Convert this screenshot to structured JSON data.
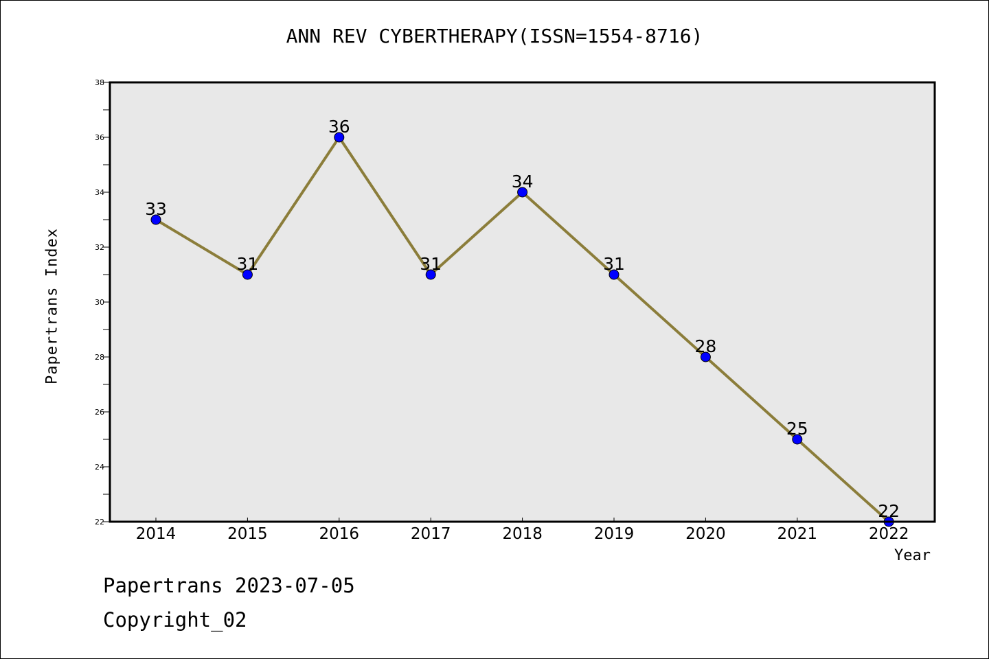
{
  "title": "ANN REV CYBERTHERAPY(ISSN=1554-8716)",
  "footer": {
    "date_line": "Papertrans 2023-07-05",
    "copyright": "Copyright_02"
  },
  "colors": {
    "line": "#8b7d3a",
    "marker": "#0000ff",
    "plot_background": "#e8e8e8"
  },
  "chart_data": {
    "type": "line",
    "title": "ANN REV CYBERTHERAPY(ISSN=1554-8716)",
    "xlabel": "Year",
    "ylabel": "Papertrans Index",
    "x": [
      "2014",
      "2015",
      "2016",
      "2017",
      "2018",
      "2019",
      "2020",
      "2021",
      "2022"
    ],
    "values": [
      33,
      31,
      36,
      31,
      34,
      31,
      28,
      25,
      22
    ],
    "data_labels": [
      "33",
      "31",
      "36",
      "31",
      "34",
      "31",
      "28",
      "25",
      "22"
    ],
    "ylim": [
      22,
      38
    ],
    "y_ticks": [
      22,
      24,
      26,
      28,
      30,
      32,
      34,
      36,
      38
    ],
    "grid": false,
    "legend": "none"
  }
}
